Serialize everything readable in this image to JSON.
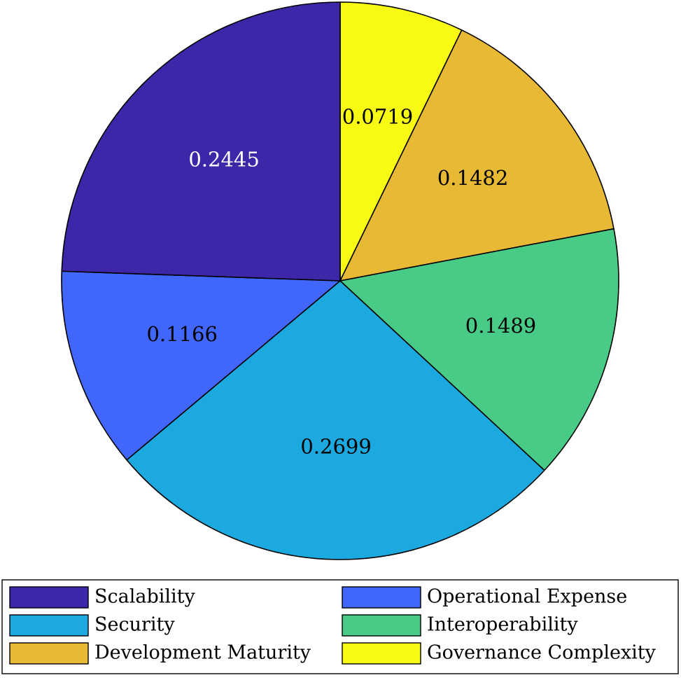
{
  "chart_data": {
    "type": "pie",
    "title": "",
    "slices": [
      {
        "label": "Governance Complexity",
        "value": 0.0719,
        "value_label": "0.0719",
        "color": "#F9FA14",
        "label_color": "#000000"
      },
      {
        "label": "Development Maturity",
        "value": 0.1482,
        "value_label": "0.1482",
        "color": "#E7B935",
        "label_color": "#000000"
      },
      {
        "label": "Interoperability",
        "value": 0.1489,
        "value_label": "0.1489",
        "color": "#48CB86",
        "label_color": "#000000"
      },
      {
        "label": "Security",
        "value": 0.2699,
        "value_label": "0.2699",
        "color": "#1BA9DF",
        "label_color": "#000000"
      },
      {
        "label": "Operational Expense",
        "value": 0.1166,
        "value_label": "0.1166",
        "color": "#4166FB",
        "label_color": "#000000"
      },
      {
        "label": "Scalability",
        "value": 0.2445,
        "value_label": "0.2445",
        "color": "#3E26A8",
        "label_color": "#ffffff"
      }
    ],
    "legend": {
      "placement": "bottom",
      "columns": 2,
      "entries": [
        "Scalability",
        "Operational Expense",
        "Security",
        "Interoperability",
        "Development Maturity",
        "Governance Complexity"
      ]
    }
  }
}
